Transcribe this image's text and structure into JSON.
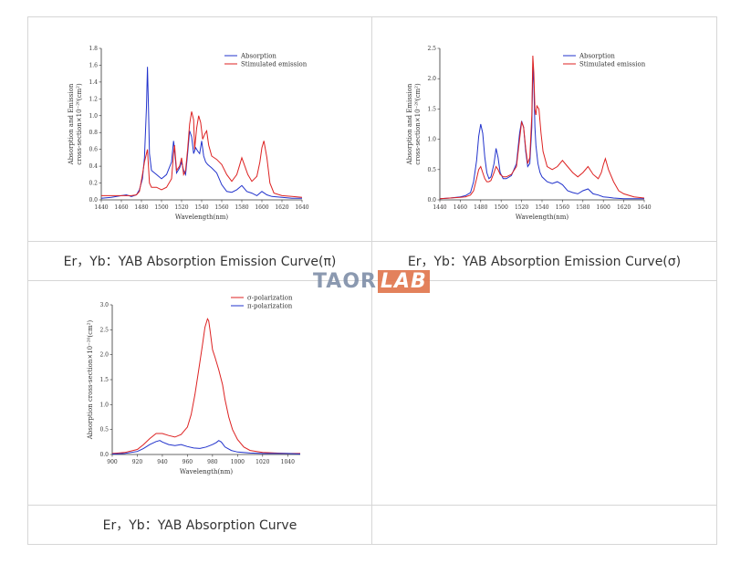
{
  "captions": {
    "cell_1": "Er，Yb：YAB Absorption Emission Curve(π)",
    "cell_2": "Er，Yb：YAB Absorption Emission Curve(σ)",
    "cell_3": "Er，Yb：YAB Absorption Curve",
    "cell_4": ""
  },
  "watermark": {
    "text": "TAOR",
    "badge": "LAB"
  },
  "chart_data": [
    {
      "type": "line",
      "xlabel": "Wavelength(nm)",
      "ylabel_lines": [
        "Absorption and Emission",
        "cross-section×10⁻²⁰(cm²)"
      ],
      "xlim": [
        1440,
        1640
      ],
      "ylim": [
        0,
        1.8
      ],
      "xticks": [
        1440,
        1460,
        1480,
        1500,
        1520,
        1540,
        1560,
        1580,
        1600,
        1620,
        1640
      ],
      "yticks": [
        0.0,
        0.2,
        0.4,
        0.6,
        0.8,
        1.0,
        1.2,
        1.4,
        1.6,
        1.8
      ],
      "legend_position": "top-right",
      "grid": false,
      "series": [
        {
          "name": "Absorption",
          "color": "#2233cc",
          "x": [
            1440,
            1450,
            1460,
            1465,
            1470,
            1475,
            1478,
            1481,
            1483,
            1485,
            1486,
            1487,
            1488,
            1490,
            1495,
            1500,
            1505,
            1510,
            1512,
            1513,
            1515,
            1518,
            1520,
            1522,
            1524,
            1526,
            1528,
            1530,
            1532,
            1534,
            1536,
            1538,
            1540,
            1542,
            1544,
            1546,
            1550,
            1555,
            1560,
            1565,
            1570,
            1575,
            1580,
            1585,
            1590,
            1595,
            1600,
            1605,
            1610,
            1620,
            1630,
            1640
          ],
          "y": [
            0.02,
            0.03,
            0.05,
            0.06,
            0.04,
            0.06,
            0.12,
            0.25,
            0.5,
            1.1,
            1.58,
            1.1,
            0.55,
            0.35,
            0.3,
            0.25,
            0.3,
            0.45,
            0.7,
            0.6,
            0.32,
            0.38,
            0.45,
            0.35,
            0.3,
            0.55,
            0.82,
            0.75,
            0.55,
            0.62,
            0.58,
            0.55,
            0.7,
            0.52,
            0.45,
            0.42,
            0.38,
            0.32,
            0.18,
            0.1,
            0.09,
            0.12,
            0.17,
            0.1,
            0.08,
            0.05,
            0.1,
            0.06,
            0.04,
            0.03,
            0.02,
            0.02
          ]
        },
        {
          "name": "Stimulated emission",
          "color": "#dd2222",
          "x": [
            1440,
            1450,
            1460,
            1470,
            1475,
            1478,
            1481,
            1483,
            1485,
            1486,
            1487,
            1488,
            1490,
            1495,
            1500,
            1505,
            1510,
            1512,
            1513,
            1515,
            1518,
            1520,
            1522,
            1524,
            1526,
            1528,
            1530,
            1532,
            1533,
            1535,
            1537,
            1539,
            1541,
            1543,
            1545,
            1547,
            1550,
            1555,
            1560,
            1565,
            1570,
            1575,
            1578,
            1580,
            1583,
            1586,
            1590,
            1595,
            1598,
            1600,
            1602,
            1605,
            1608,
            1612,
            1620,
            1630,
            1640
          ],
          "y": [
            0.05,
            0.05,
            0.05,
            0.05,
            0.06,
            0.1,
            0.3,
            0.45,
            0.55,
            0.6,
            0.4,
            0.2,
            0.15,
            0.15,
            0.12,
            0.15,
            0.25,
            0.55,
            0.65,
            0.35,
            0.4,
            0.5,
            0.3,
            0.35,
            0.6,
            0.9,
            1.05,
            0.95,
            0.6,
            0.85,
            1.0,
            0.92,
            0.72,
            0.78,
            0.82,
            0.65,
            0.52,
            0.48,
            0.42,
            0.3,
            0.22,
            0.3,
            0.42,
            0.5,
            0.4,
            0.3,
            0.22,
            0.28,
            0.45,
            0.62,
            0.7,
            0.5,
            0.2,
            0.08,
            0.05,
            0.04,
            0.03
          ]
        }
      ]
    },
    {
      "type": "line",
      "xlabel": "Wavelength(nm)",
      "ylabel_lines": [
        "Absorption and Emission",
        "cross-section×10⁻²⁰(cm²)"
      ],
      "xlim": [
        1440,
        1640
      ],
      "ylim": [
        0,
        2.5
      ],
      "xticks": [
        1440,
        1460,
        1480,
        1500,
        1520,
        1540,
        1560,
        1580,
        1600,
        1620,
        1640
      ],
      "yticks": [
        0.0,
        0.5,
        1.0,
        1.5,
        2.0,
        2.5
      ],
      "legend_position": "top-right",
      "grid": false,
      "series": [
        {
          "name": "Absorption",
          "color": "#2233cc",
          "x": [
            1440,
            1450,
            1460,
            1465,
            1470,
            1473,
            1476,
            1478,
            1480,
            1482,
            1484,
            1486,
            1488,
            1490,
            1493,
            1495,
            1497,
            1499,
            1502,
            1505,
            1510,
            1515,
            1518,
            1520,
            1522,
            1524,
            1526,
            1528,
            1530,
            1531,
            1532,
            1533,
            1534,
            1535,
            1536,
            1538,
            1540,
            1545,
            1550,
            1555,
            1560,
            1565,
            1570,
            1575,
            1580,
            1585,
            1590,
            1595,
            1600,
            1605,
            1610,
            1620,
            1630,
            1640
          ],
          "y": [
            0.02,
            0.03,
            0.05,
            0.07,
            0.12,
            0.3,
            0.65,
            1.05,
            1.25,
            1.1,
            0.7,
            0.45,
            0.35,
            0.38,
            0.6,
            0.85,
            0.7,
            0.45,
            0.35,
            0.35,
            0.4,
            0.6,
            1.1,
            1.3,
            1.2,
            0.8,
            0.55,
            0.6,
            1.2,
            2.2,
            1.9,
            1.2,
            0.9,
            0.75,
            0.6,
            0.45,
            0.38,
            0.3,
            0.27,
            0.3,
            0.25,
            0.15,
            0.12,
            0.1,
            0.15,
            0.18,
            0.1,
            0.08,
            0.05,
            0.04,
            0.03,
            0.02,
            0.02,
            0.02
          ]
        },
        {
          "name": "Stimulated emission",
          "color": "#dd2222",
          "x": [
            1440,
            1450,
            1460,
            1465,
            1470,
            1473,
            1476,
            1478,
            1480,
            1482,
            1484,
            1486,
            1488,
            1490,
            1493,
            1495,
            1497,
            1499,
            1502,
            1505,
            1510,
            1515,
            1518,
            1520,
            1522,
            1524,
            1526,
            1528,
            1530,
            1531,
            1532,
            1533,
            1534,
            1535,
            1537,
            1539,
            1541,
            1545,
            1550,
            1555,
            1560,
            1565,
            1570,
            1575,
            1580,
            1585,
            1590,
            1595,
            1598,
            1600,
            1602,
            1605,
            1610,
            1615,
            1620,
            1630,
            1640
          ],
          "y": [
            0.02,
            0.03,
            0.04,
            0.05,
            0.08,
            0.15,
            0.35,
            0.5,
            0.55,
            0.45,
            0.35,
            0.3,
            0.3,
            0.32,
            0.45,
            0.55,
            0.5,
            0.42,
            0.38,
            0.38,
            0.42,
            0.55,
            1.0,
            1.28,
            1.2,
            0.85,
            0.6,
            0.7,
            1.4,
            2.38,
            2.1,
            1.5,
            1.4,
            1.55,
            1.5,
            1.1,
            0.8,
            0.55,
            0.5,
            0.55,
            0.65,
            0.55,
            0.45,
            0.38,
            0.45,
            0.55,
            0.42,
            0.35,
            0.45,
            0.58,
            0.68,
            0.5,
            0.3,
            0.15,
            0.1,
            0.05,
            0.03
          ]
        }
      ]
    },
    {
      "type": "line",
      "xlabel": "Wavelength(nm)",
      "ylabel_lines": [
        "Absorption cross-section×10⁻²⁰(cm²)"
      ],
      "xlim": [
        900,
        1050
      ],
      "ylim": [
        0,
        3.0
      ],
      "xticks": [
        900,
        920,
        940,
        960,
        980,
        1000,
        1020,
        1040
      ],
      "yticks": [
        0.0,
        0.5,
        1.0,
        1.5,
        2.0,
        2.5,
        3.0
      ],
      "legend_position": "top-right",
      "grid": false,
      "series": [
        {
          "name": "σ-polarization",
          "color": "#dd2222",
          "x": [
            900,
            910,
            920,
            925,
            930,
            935,
            940,
            945,
            950,
            955,
            960,
            963,
            966,
            969,
            972,
            974,
            976,
            977,
            978,
            980,
            982,
            985,
            988,
            990,
            993,
            996,
            1000,
            1005,
            1010,
            1020,
            1030,
            1040,
            1050
          ],
          "y": [
            0.02,
            0.04,
            0.1,
            0.2,
            0.32,
            0.42,
            0.42,
            0.38,
            0.35,
            0.4,
            0.55,
            0.8,
            1.2,
            1.7,
            2.2,
            2.55,
            2.72,
            2.68,
            2.5,
            2.1,
            1.95,
            1.7,
            1.4,
            1.1,
            0.75,
            0.5,
            0.3,
            0.15,
            0.08,
            0.04,
            0.03,
            0.02,
            0.02
          ]
        },
        {
          "name": "π-polarization",
          "color": "#2233cc",
          "x": [
            900,
            910,
            920,
            925,
            930,
            935,
            938,
            940,
            945,
            950,
            955,
            960,
            965,
            970,
            975,
            980,
            983,
            985,
            987,
            990,
            995,
            1000,
            1010,
            1020,
            1030,
            1040,
            1050
          ],
          "y": [
            0.01,
            0.02,
            0.06,
            0.12,
            0.2,
            0.26,
            0.28,
            0.25,
            0.2,
            0.18,
            0.2,
            0.16,
            0.13,
            0.12,
            0.15,
            0.2,
            0.24,
            0.28,
            0.25,
            0.15,
            0.08,
            0.05,
            0.03,
            0.02,
            0.02,
            0.02,
            0.01
          ]
        }
      ]
    }
  ]
}
